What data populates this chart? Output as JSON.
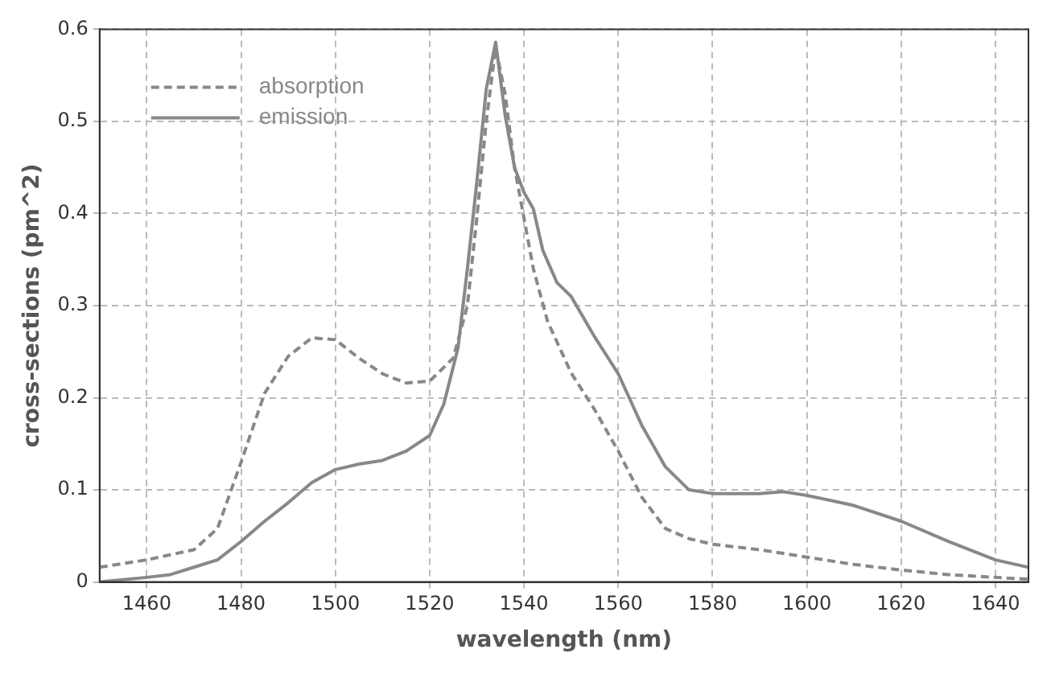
{
  "chart_data": {
    "type": "line",
    "xlabel": "wavelength (nm)",
    "ylabel": "cross-sections (pm^2)",
    "xlim": [
      1450,
      1647
    ],
    "xticks": [
      1460,
      1480,
      1500,
      1520,
      1540,
      1560,
      1580,
      1600,
      1620,
      1640
    ],
    "ylim": [
      0,
      0.6
    ],
    "yticks": [
      0,
      0.1,
      0.2,
      0.3,
      0.4,
      0.5,
      0.6
    ],
    "grid": true,
    "legend": "top left",
    "marker": "none",
    "series": [
      {
        "name": "absorption",
        "color": "#888888",
        "line_style": "dashed",
        "x": [
          1450,
          1460,
          1470,
          1475,
          1480,
          1485,
          1490,
          1495,
          1500,
          1505,
          1510,
          1515,
          1520,
          1525,
          1528,
          1530,
          1532,
          1534,
          1536,
          1538,
          1540,
          1542,
          1545,
          1550,
          1555,
          1560,
          1565,
          1570,
          1575,
          1580,
          1590,
          1600,
          1610,
          1620,
          1630,
          1640,
          1647
        ],
        "values": [
          0.016,
          0.024,
          0.035,
          0.058,
          0.13,
          0.205,
          0.245,
          0.265,
          0.263,
          0.243,
          0.226,
          0.216,
          0.218,
          0.243,
          0.3,
          0.395,
          0.5,
          0.58,
          0.53,
          0.45,
          0.395,
          0.34,
          0.283,
          0.227,
          0.187,
          0.142,
          0.092,
          0.058,
          0.047,
          0.041,
          0.035,
          0.027,
          0.019,
          0.013,
          0.008,
          0.005,
          0.003
        ]
      },
      {
        "name": "emission",
        "color": "#888888",
        "line_style": "solid",
        "x": [
          1450,
          1460,
          1465,
          1470,
          1475,
          1480,
          1485,
          1490,
          1495,
          1500,
          1505,
          1510,
          1515,
          1520,
          1523,
          1526,
          1528,
          1530,
          1532,
          1534,
          1536,
          1538,
          1540,
          1542,
          1544,
          1547,
          1550,
          1555,
          1560,
          1565,
          1570,
          1575,
          1580,
          1590,
          1595,
          1600,
          1610,
          1620,
          1630,
          1640,
          1647
        ],
        "values": [
          0.0,
          0.005,
          0.008,
          0.016,
          0.024,
          0.044,
          0.066,
          0.086,
          0.108,
          0.122,
          0.128,
          0.132,
          0.142,
          0.159,
          0.193,
          0.254,
          0.34,
          0.434,
          0.535,
          0.586,
          0.507,
          0.45,
          0.423,
          0.405,
          0.36,
          0.325,
          0.31,
          0.266,
          0.226,
          0.17,
          0.125,
          0.1,
          0.096,
          0.096,
          0.098,
          0.094,
          0.083,
          0.066,
          0.044,
          0.024,
          0.016
        ]
      }
    ]
  }
}
